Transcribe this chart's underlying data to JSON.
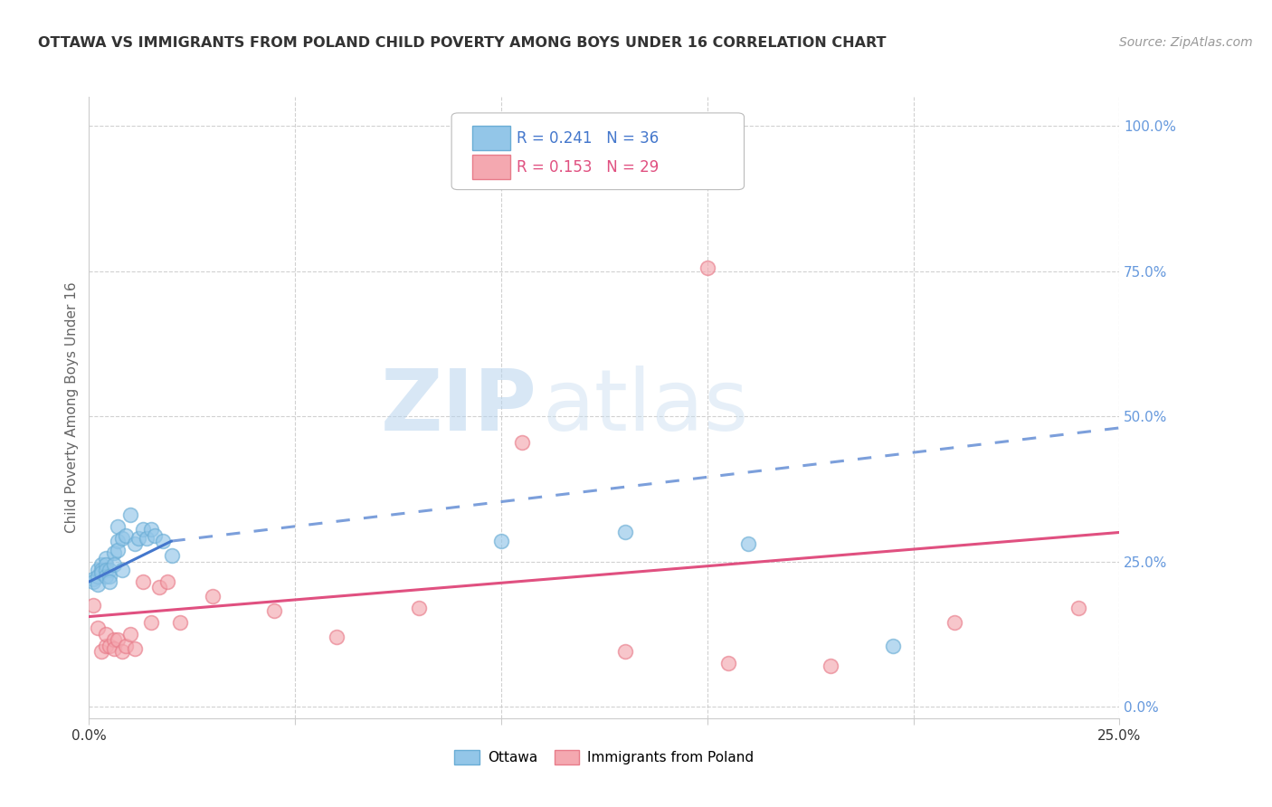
{
  "title": "OTTAWA VS IMMIGRANTS FROM POLAND CHILD POVERTY AMONG BOYS UNDER 16 CORRELATION CHART",
  "source": "Source: ZipAtlas.com",
  "ylabel": "Child Poverty Among Boys Under 16",
  "ylabel_ticks": [
    "0.0%",
    "25.0%",
    "50.0%",
    "75.0%",
    "100.0%"
  ],
  "ylabel_values": [
    0.0,
    0.25,
    0.5,
    0.75,
    1.0
  ],
  "xlim": [
    0,
    0.25
  ],
  "ylim": [
    -0.02,
    1.05
  ],
  "ottawa_R": 0.241,
  "ottawa_N": 36,
  "poland_R": 0.153,
  "poland_N": 29,
  "ottawa_color": "#93c6e8",
  "ottawa_edge": "#6aadd5",
  "poland_color": "#f4a8b0",
  "poland_edge": "#e87c8a",
  "trend_ottawa_color": "#4477cc",
  "trend_poland_color": "#e05080",
  "background_color": "#ffffff",
  "watermark_zip": "ZIP",
  "watermark_atlas": "atlas",
  "ottawa_x": [
    0.001,
    0.001,
    0.002,
    0.002,
    0.002,
    0.003,
    0.003,
    0.003,
    0.004,
    0.004,
    0.004,
    0.004,
    0.005,
    0.005,
    0.005,
    0.006,
    0.006,
    0.007,
    0.007,
    0.007,
    0.008,
    0.008,
    0.009,
    0.01,
    0.011,
    0.012,
    0.013,
    0.014,
    0.015,
    0.016,
    0.018,
    0.02,
    0.1,
    0.13,
    0.16,
    0.195
  ],
  "ottawa_y": [
    0.22,
    0.215,
    0.235,
    0.225,
    0.21,
    0.245,
    0.235,
    0.23,
    0.255,
    0.245,
    0.235,
    0.225,
    0.235,
    0.225,
    0.215,
    0.265,
    0.245,
    0.31,
    0.285,
    0.27,
    0.29,
    0.235,
    0.295,
    0.33,
    0.28,
    0.29,
    0.305,
    0.29,
    0.305,
    0.295,
    0.285,
    0.26,
    0.285,
    0.3,
    0.28,
    0.105
  ],
  "poland_x": [
    0.001,
    0.002,
    0.003,
    0.004,
    0.004,
    0.005,
    0.006,
    0.006,
    0.007,
    0.008,
    0.009,
    0.01,
    0.011,
    0.013,
    0.015,
    0.017,
    0.019,
    0.022,
    0.03,
    0.045,
    0.06,
    0.08,
    0.105,
    0.13,
    0.155,
    0.18,
    0.21,
    0.24,
    0.15
  ],
  "poland_y": [
    0.175,
    0.135,
    0.095,
    0.105,
    0.125,
    0.105,
    0.115,
    0.1,
    0.115,
    0.095,
    0.105,
    0.125,
    0.1,
    0.215,
    0.145,
    0.205,
    0.215,
    0.145,
    0.19,
    0.165,
    0.12,
    0.17,
    0.455,
    0.095,
    0.075,
    0.07,
    0.145,
    0.17,
    0.755
  ],
  "trend_ottawa_x0": 0.0,
  "trend_ottawa_y0": 0.215,
  "trend_ottawa_x1": 0.02,
  "trend_ottawa_y1": 0.285,
  "trend_ottawa_xdash": 0.25,
  "trend_ottawa_ydash": 0.48,
  "trend_poland_x0": 0.0,
  "trend_poland_y0": 0.155,
  "trend_poland_x1": 0.25,
  "trend_poland_y1": 0.3
}
